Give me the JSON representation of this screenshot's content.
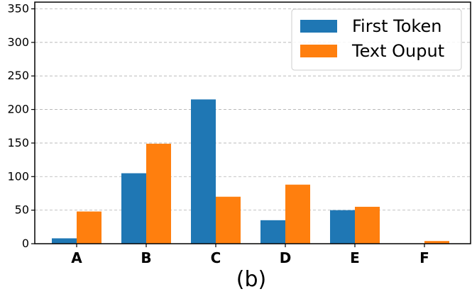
{
  "chart_data": {
    "type": "bar",
    "categories": [
      "A",
      "B",
      "C",
      "D",
      "E",
      "F"
    ],
    "series": [
      {
        "name": "First Token",
        "values": [
          8,
          105,
          215,
          35,
          50,
          0
        ],
        "color": "#1f77b4"
      },
      {
        "name": "Text Ouput",
        "values": [
          48,
          149,
          70,
          88,
          55,
          4
        ],
        "color": "#ff7f0e"
      }
    ],
    "ylim": [
      0,
      360
    ],
    "yticks": [
      0,
      50,
      100,
      150,
      200,
      250,
      300,
      350
    ],
    "grid": "horizontal-dashed",
    "legend_position": "top-right",
    "caption": "(b)"
  }
}
